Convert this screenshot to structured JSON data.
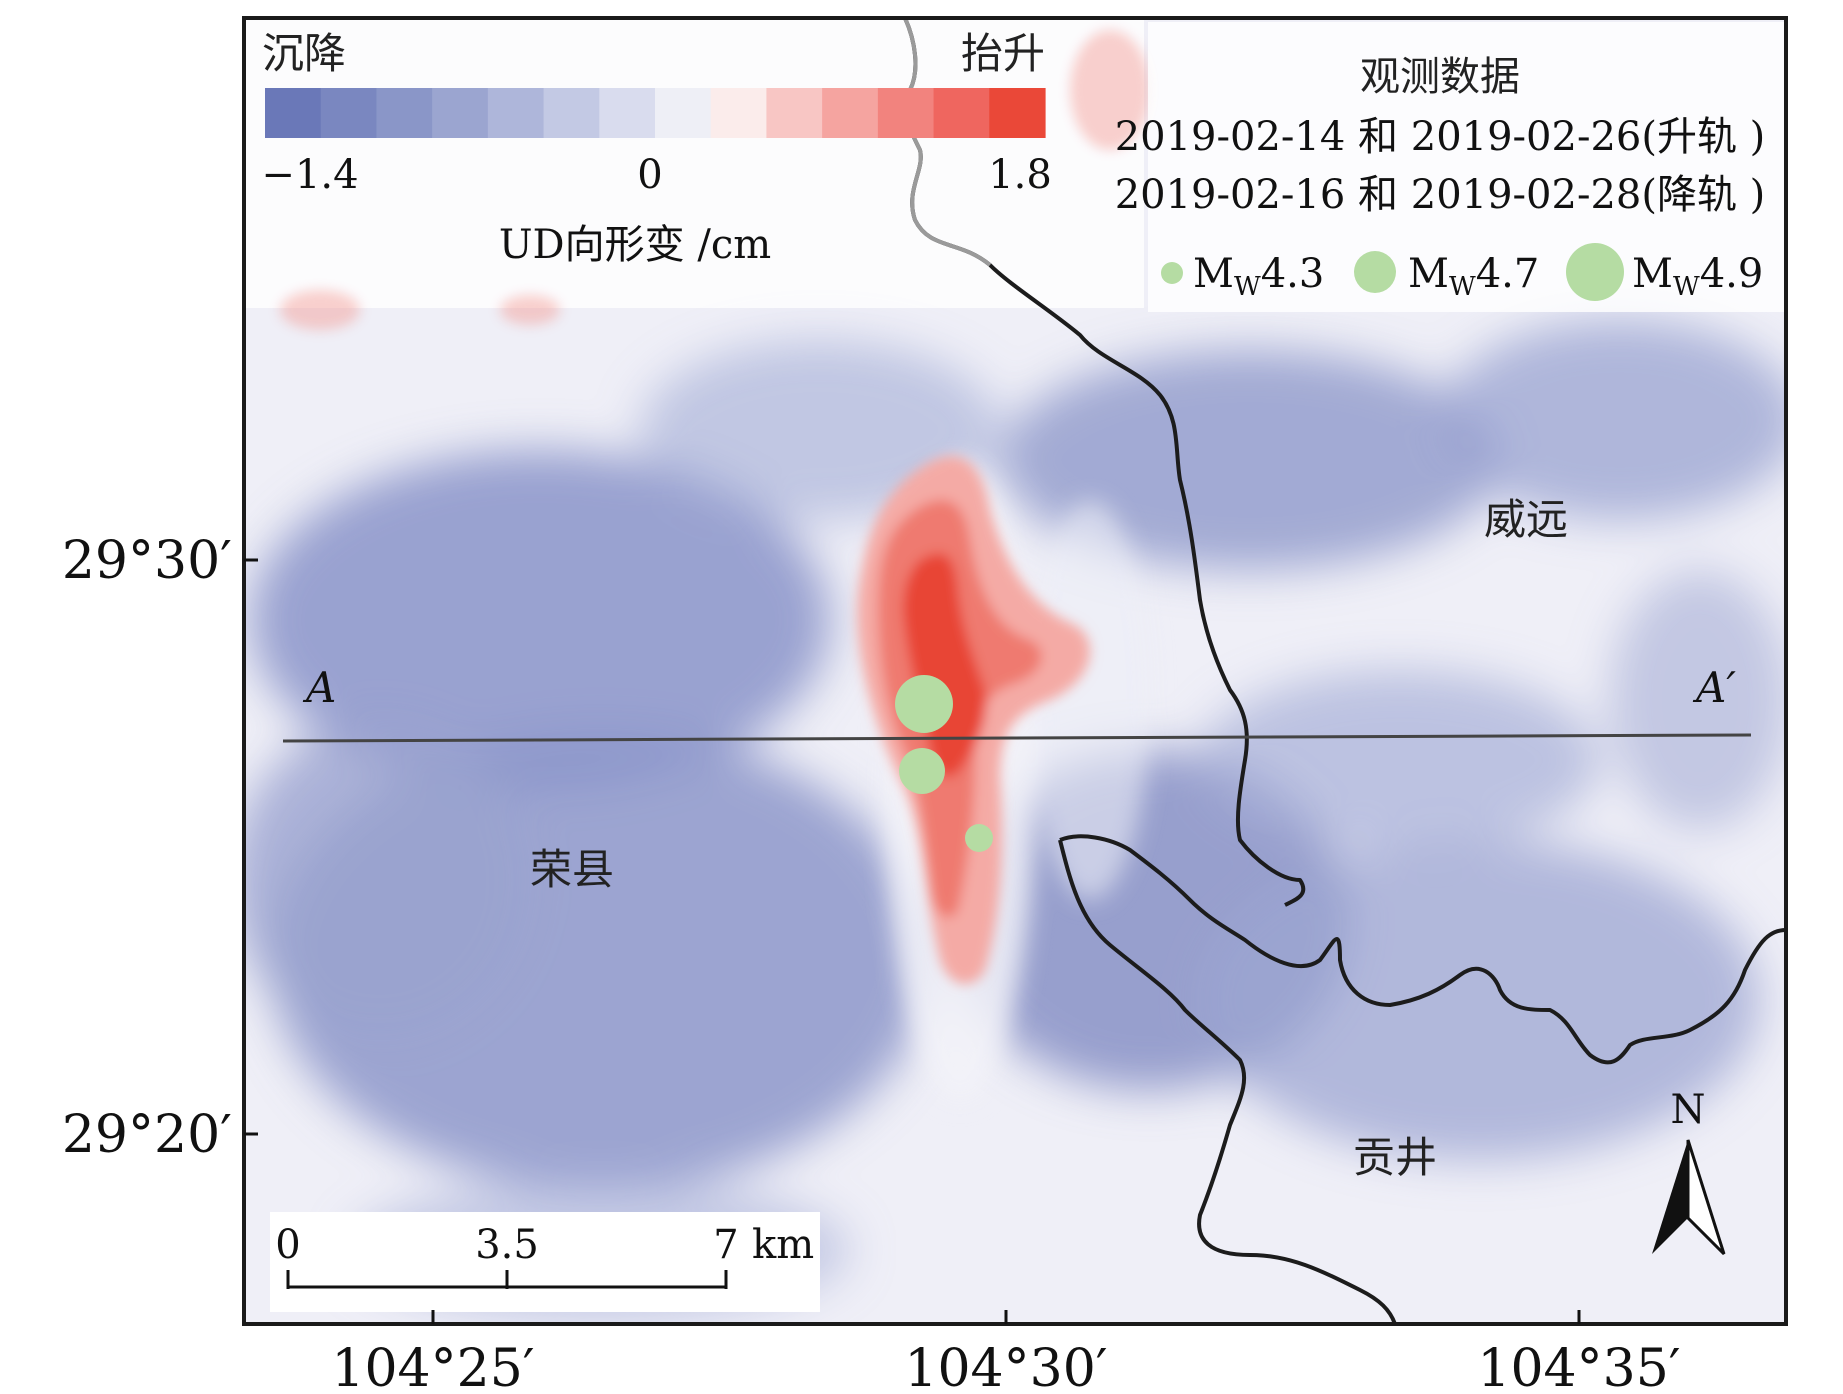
{
  "colorbar": {
    "left_label": "沉降",
    "right_label": "抬升",
    "min_label": "−1.4",
    "mid_label": "0",
    "max_label": "1.8",
    "title": "UD向形变 /cm",
    "colors": [
      "#6a78b8",
      "#7a87c0",
      "#8a96c8",
      "#9ba5d0",
      "#aeb6da",
      "#c3c9e4",
      "#d9dcee",
      "#eeeff6",
      "#fbeceb",
      "#f8c6c4",
      "#f5a4a0",
      "#f2837e",
      "#ef665f",
      "#ea4838"
    ]
  },
  "legend": {
    "title": "观测数据",
    "line1": "2019-02-14 和 2019-02-26(升轨 )",
    "line2": "2019-02-16 和 2019-02-28(降轨 )",
    "events": [
      {
        "label": "M",
        "sub": "W",
        "mag": "4.3"
      },
      {
        "label": "M",
        "sub": "W",
        "mag": "4.7"
      },
      {
        "label": "M",
        "sub": "W",
        "mag": "4.9"
      }
    ],
    "event_color": "#b5dca3"
  },
  "axes": {
    "y_ticks": [
      "29°30′",
      "29°20′"
    ],
    "x_ticks": [
      "104°25′",
      "104°30′",
      "104°35′"
    ]
  },
  "profile": {
    "start_label": "A",
    "end_label": "A′"
  },
  "places": {
    "rongxian": "荣县",
    "weiyuan": "威远",
    "gongjing": "贡井"
  },
  "scalebar": {
    "t0": "0",
    "t1": "3.5",
    "t2": "7",
    "unit": "km"
  },
  "north": {
    "label": "N"
  },
  "colors": {
    "uplift": "#ea4838",
    "subsidence": "#6a78b8",
    "background": "#eeeff6",
    "border": "#1a1a1a"
  }
}
